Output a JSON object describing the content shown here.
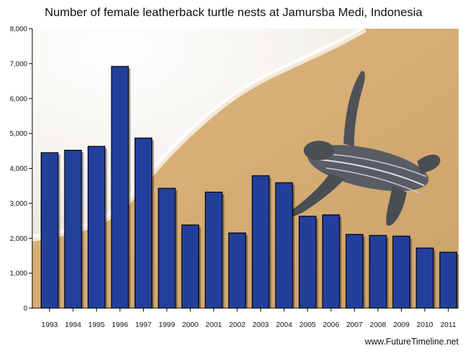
{
  "chart_data": {
    "type": "bar",
    "title": "Number of female leatherback turtle nests at Jamursba Medi, Indonesia",
    "categories": [
      "1993",
      "1994",
      "1995",
      "1996",
      "1997",
      "1999",
      "2000",
      "2001",
      "2002",
      "2003",
      "2004",
      "2005",
      "2006",
      "2007",
      "2008",
      "2009",
      "2010",
      "2011"
    ],
    "values": [
      4450,
      4520,
      4630,
      6920,
      4870,
      3430,
      2380,
      3320,
      2150,
      3790,
      3590,
      2630,
      2670,
      2110,
      2080,
      2060,
      1720,
      1600
    ],
    "ylim": [
      0,
      8000
    ],
    "yticks": [
      "0",
      "1,000",
      "2,000",
      "3,000",
      "4,000",
      "5,000",
      "6,000",
      "7,000",
      "8,000"
    ],
    "xlabel": "",
    "ylabel": "",
    "grid": false,
    "colors": {
      "bar": "#233f9c",
      "bar_edge": "#000000"
    }
  },
  "background": {
    "description_icon": "leatherback-turtle-on-sand"
  },
  "credit": "www.FutureTimeline.net"
}
